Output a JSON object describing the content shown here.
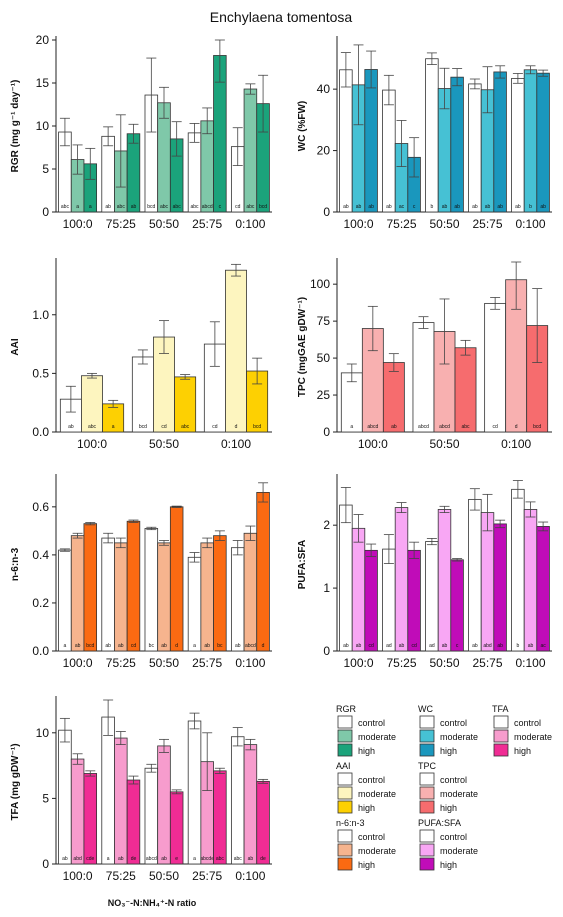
{
  "figure": {
    "title": "Enchylaena tomentosa",
    "xlabel": "NO₃⁻-N:NH₄⁺-N ratio",
    "legend_labels": [
      "control",
      "moderate",
      "high"
    ]
  },
  "chart_data": [
    {
      "id": "rgr",
      "type": "bar",
      "ylabel": "RGR (mg g⁻¹ day⁻¹)",
      "ylim": [
        0,
        20
      ],
      "yticks": [
        0,
        5,
        10,
        15,
        20
      ],
      "categories": [
        "100:0",
        "75:25",
        "50:50",
        "25:75",
        "0:100"
      ],
      "colors": [
        "#ffffff",
        "#7fc8a9",
        "#1ba37b"
      ],
      "series": [
        {
          "name": "control",
          "values": [
            9.3,
            8.8,
            13.6,
            9.2,
            7.6
          ],
          "errors": [
            1.6,
            1.1,
            4.3,
            1.1,
            2.2
          ]
        },
        {
          "name": "moderate",
          "values": [
            6.1,
            7.1,
            12.7,
            10.6,
            14.3
          ],
          "errors": [
            1.7,
            4.2,
            1.8,
            1.5,
            0.6
          ]
        },
        {
          "name": "high",
          "values": [
            5.6,
            9.1,
            8.5,
            18.2,
            12.6
          ],
          "errors": [
            1.8,
            1.1,
            2.0,
            3.1,
            3.3
          ]
        }
      ],
      "letters": [
        [
          "abc",
          "a",
          "a"
        ],
        [
          "ab",
          "abc",
          "ab"
        ],
        [
          "bcd",
          "abc",
          "abc"
        ],
        [
          "abc",
          "abcd",
          "c"
        ],
        [
          "cd",
          "abc",
          "bcd"
        ]
      ]
    },
    {
      "id": "wc",
      "type": "bar",
      "ylabel": "WC (%FW)",
      "ylim": [
        0,
        56
      ],
      "yticks": [
        0,
        20,
        40
      ],
      "categories": [
        "100:0",
        "75:25",
        "50:50",
        "25:75",
        "0:100"
      ],
      "colors": [
        "#ffffff",
        "#46c1d4",
        "#1a97bd"
      ],
      "series": [
        {
          "name": "control",
          "values": [
            46.3,
            39.7,
            49.9,
            41.7,
            43.5
          ],
          "errors": [
            5.6,
            4.8,
            1.9,
            1.6,
            1.6
          ]
        },
        {
          "name": "moderate",
          "values": [
            41.4,
            22.3,
            40.2,
            39.8,
            46.3
          ],
          "errors": [
            13.0,
            7.5,
            6.6,
            7.5,
            1.3
          ]
        },
        {
          "name": "high",
          "values": [
            46.4,
            17.8,
            43.9,
            45.6,
            45.2
          ],
          "errors": [
            6.0,
            6.4,
            2.8,
            2.0,
            1.0
          ]
        }
      ],
      "letters": [
        [
          "ab",
          "ab",
          "ab"
        ],
        [
          "ab",
          "ac",
          "c"
        ],
        [
          "b",
          "ab",
          "ab"
        ],
        [
          "ab",
          "ab",
          "ab"
        ],
        [
          "ab",
          "b",
          "ab"
        ]
      ]
    },
    {
      "id": "aai",
      "type": "bar",
      "ylabel": "AAI",
      "ylim": [
        0,
        1.45
      ],
      "yticks": [
        0.0,
        0.5,
        1.0
      ],
      "categories": [
        "100:0",
        "50:50",
        "0:100"
      ],
      "colors": [
        "#ffffff",
        "#fdf5bf",
        "#fdd002"
      ],
      "series": [
        {
          "name": "control",
          "values": [
            0.28,
            0.64,
            0.75
          ],
          "errors": [
            0.11,
            0.06,
            0.19
          ]
        },
        {
          "name": "moderate",
          "values": [
            0.48,
            0.81,
            1.38
          ],
          "errors": [
            0.02,
            0.14,
            0.05
          ]
        },
        {
          "name": "high",
          "values": [
            0.24,
            0.47,
            0.52
          ],
          "errors": [
            0.03,
            0.02,
            0.11
          ]
        }
      ],
      "letters": [
        [
          "ab",
          "abc",
          "a"
        ],
        [
          "bcd",
          "cd",
          "abc"
        ],
        [
          "cd",
          "d",
          "bcd"
        ]
      ]
    },
    {
      "id": "tpc",
      "type": "bar",
      "ylabel": "TPC (mgGAE gDW⁻¹)",
      "ylim": [
        0,
        115
      ],
      "yticks": [
        0,
        25,
        50,
        75,
        100
      ],
      "categories": [
        "100:0",
        "50:50",
        "0:100"
      ],
      "colors": [
        "#ffffff",
        "#f8b0b0",
        "#f66c6e"
      ],
      "series": [
        {
          "name": "control",
          "values": [
            40,
            74,
            87
          ],
          "errors": [
            6,
            4,
            4
          ]
        },
        {
          "name": "moderate",
          "values": [
            70,
            68,
            103
          ],
          "errors": [
            15,
            22,
            20
          ]
        },
        {
          "name": "high",
          "values": [
            47,
            57,
            72
          ],
          "errors": [
            6,
            5,
            25
          ]
        }
      ],
      "letters": [
        [
          "a",
          "abcd",
          "ab"
        ],
        [
          "abcd",
          "abcd",
          "abc"
        ],
        [
          "cd",
          "d",
          "bcd"
        ]
      ]
    },
    {
      "id": "n6n3",
      "type": "bar",
      "ylabel": "n-6:n-3",
      "ylim": [
        0,
        0.72
      ],
      "yticks": [
        0.0,
        0.2,
        0.4,
        0.6
      ],
      "categories": [
        "100:0",
        "75:25",
        "50:50",
        "25:75",
        "0:100"
      ],
      "colors": [
        "#ffffff",
        "#f6b48e",
        "#fb6a12"
      ],
      "series": [
        {
          "name": "control",
          "values": [
            0.42,
            0.47,
            0.51,
            0.39,
            0.43
          ],
          "errors": [
            0.005,
            0.02,
            0.005,
            0.02,
            0.03
          ]
        },
        {
          "name": "moderate",
          "values": [
            0.48,
            0.45,
            0.45,
            0.45,
            0.49
          ],
          "errors": [
            0.01,
            0.02,
            0.01,
            0.02,
            0.03
          ]
        },
        {
          "name": "high",
          "values": [
            0.53,
            0.54,
            0.6,
            0.48,
            0.66
          ],
          "errors": [
            0.005,
            0.005,
            0.003,
            0.02,
            0.04
          ]
        }
      ],
      "letters": [
        [
          "a",
          "ab",
          "bcd"
        ],
        [
          "ab",
          "ab",
          "cd"
        ],
        [
          "bc",
          "ab",
          "d"
        ],
        [
          "a",
          "ab",
          "bc"
        ],
        [
          "ab",
          "abcd",
          "d"
        ]
      ]
    },
    {
      "id": "pufa",
      "type": "bar",
      "ylabel": "PUFA:SFA",
      "ylim": [
        0,
        2.75
      ],
      "yticks": [
        0,
        1,
        2
      ],
      "categories": [
        "100:0",
        "75:25",
        "50:50",
        "25:75",
        "0:100"
      ],
      "colors": [
        "#ffffff",
        "#f8a7f4",
        "#c00cb8"
      ],
      "series": [
        {
          "name": "control",
          "values": [
            2.32,
            1.62,
            1.74,
            2.41,
            2.57
          ],
          "errors": [
            0.28,
            0.23,
            0.05,
            0.17,
            0.14
          ]
        },
        {
          "name": "moderate",
          "values": [
            1.95,
            2.28,
            2.25,
            2.2,
            2.25
          ],
          "errors": [
            0.22,
            0.08,
            0.05,
            0.29,
            0.12
          ]
        },
        {
          "name": "high",
          "values": [
            1.6,
            1.6,
            1.45,
            2.02,
            1.98
          ],
          "errors": [
            0.1,
            0.13,
            0.02,
            0.06,
            0.07
          ]
        }
      ],
      "letters": [
        [
          "ab",
          "ab",
          "cd"
        ],
        [
          "ad",
          "ab",
          "cd"
        ],
        [
          "ad",
          "ab",
          "c"
        ],
        [
          "ab",
          "abd",
          "ab"
        ],
        [
          "b",
          "ab",
          "ac"
        ]
      ]
    },
    {
      "id": "tfa",
      "type": "bar",
      "ylabel": "TFA (mg gDW⁻¹)",
      "ylim": [
        0,
        12.5
      ],
      "yticks": [
        0,
        5,
        10
      ],
      "categories": [
        "100:0",
        "75:25",
        "50:50",
        "25:75",
        "0:100"
      ],
      "colors": [
        "#ffffff",
        "#f79ccd",
        "#f02c94"
      ],
      "series": [
        {
          "name": "control",
          "values": [
            10.2,
            11.2,
            7.3,
            10.9,
            9.7
          ],
          "errors": [
            0.9,
            1.4,
            0.3,
            0.6,
            0.7
          ]
        },
        {
          "name": "moderate",
          "values": [
            8.0,
            9.6,
            9.0,
            7.8,
            9.1
          ],
          "errors": [
            0.4,
            0.5,
            0.5,
            2.2,
            0.4
          ]
        },
        {
          "name": "high",
          "values": [
            6.9,
            6.4,
            5.5,
            7.1,
            6.3
          ],
          "errors": [
            0.2,
            0.3,
            0.15,
            0.2,
            0.15
          ]
        }
      ],
      "letters": [
        [
          "ab",
          "abd",
          "cde"
        ],
        [
          "a",
          "ab",
          "de"
        ],
        [
          "abcd",
          "ab",
          "e"
        ],
        [
          "a",
          "abcde",
          "abc"
        ],
        [
          "abc",
          "ab",
          "de"
        ]
      ]
    }
  ],
  "legend": [
    {
      "title": "RGR",
      "colors": [
        "#ffffff",
        "#7fc8a9",
        "#1ba37b"
      ]
    },
    {
      "title": "WC",
      "colors": [
        "#ffffff",
        "#46c1d4",
        "#1a97bd"
      ]
    },
    {
      "title": "TFA",
      "colors": [
        "#ffffff",
        "#f79ccd",
        "#f02c94"
      ]
    },
    {
      "title": "AAI",
      "colors": [
        "#ffffff",
        "#fdf5bf",
        "#fdd002"
      ]
    },
    {
      "title": "TPC",
      "colors": [
        "#ffffff",
        "#f8b0b0",
        "#f66c6e"
      ]
    },
    {
      "title": "n-6:n-3",
      "colors": [
        "#ffffff",
        "#f6b48e",
        "#fb6a12"
      ]
    },
    {
      "title": "PUFA:SFA",
      "colors": [
        "#ffffff",
        "#f8a7f4",
        "#c00cb8"
      ]
    }
  ]
}
